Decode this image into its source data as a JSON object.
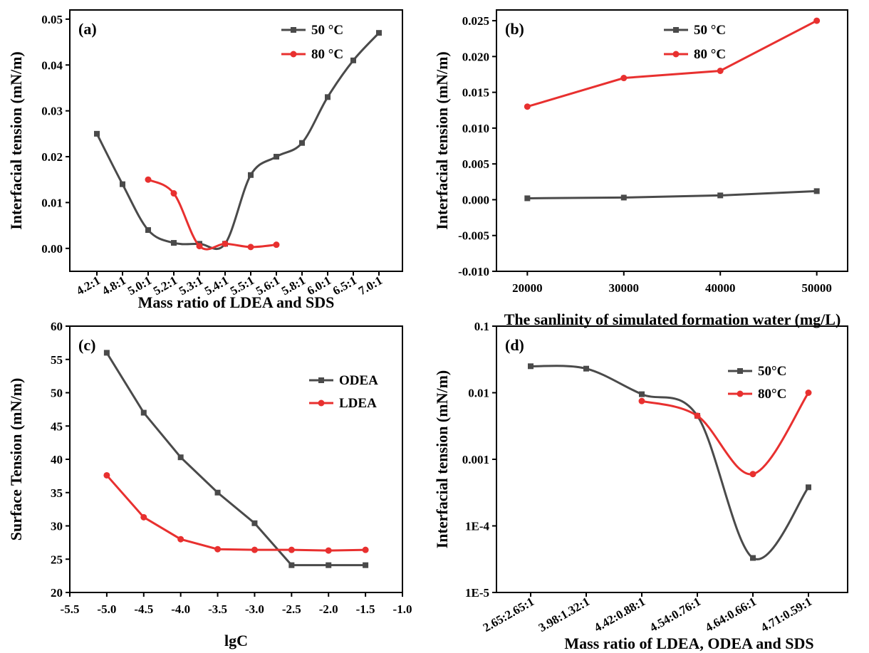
{
  "colors": {
    "series_gray": "#4a4a4a",
    "series_red": "#e8302f",
    "axis": "#000000"
  },
  "chart_data": [
    {
      "id": "a",
      "type": "line",
      "panel_label": "(a)",
      "xlabel": "Mass ratio of LDEA and SDS",
      "ylabel": "Interfacial tension (mN/m)",
      "categories": [
        "4.2:1",
        "4.8:1",
        "5.0:1",
        "5.2:1",
        "5.3:1",
        "5.4:1",
        "5.5:1",
        "5.6:1",
        "5.8:1",
        "6.0:1",
        "6.5:1",
        "7.0:1"
      ],
      "y_ticks": [
        "0.00",
        "0.01",
        "0.02",
        "0.03",
        "0.04",
        "0.05"
      ],
      "ylim": [
        -0.005,
        0.052
      ],
      "legend_position": "top-right",
      "series": [
        {
          "name": "50 °C",
          "color": "#4a4a4a",
          "marker": "square",
          "values": [
            0.025,
            0.014,
            0.004,
            0.0012,
            0.001,
            0.001,
            0.016,
            0.02,
            0.023,
            0.033,
            0.041,
            0.047
          ]
        },
        {
          "name": "80 °C",
          "color": "#e8302f",
          "marker": "circle",
          "values": [
            null,
            null,
            0.015,
            0.012,
            0.0005,
            0.001,
            0.0003,
            0.0008,
            null,
            null,
            null,
            null
          ]
        }
      ]
    },
    {
      "id": "b",
      "type": "line",
      "panel_label": "(b)",
      "xlabel": "The sanlinity of simulated formation water (mg/L)",
      "ylabel": "Interfacial tension (mN/m)",
      "x_ticks": [
        "20000",
        "30000",
        "40000",
        "50000"
      ],
      "x": [
        20000,
        30000,
        40000,
        50000
      ],
      "xlim": [
        16800,
        53200
      ],
      "y_ticks": [
        "-0.010",
        "-0.005",
        "0.000",
        "0.005",
        "0.010",
        "0.015",
        "0.020",
        "0.025"
      ],
      "ylim": [
        -0.01,
        0.0265
      ],
      "legend_position": "top-center",
      "series": [
        {
          "name": "50 °C",
          "color": "#4a4a4a",
          "marker": "square",
          "values": [
            0.0002,
            0.0003,
            0.0006,
            0.0012
          ]
        },
        {
          "name": "80 °C",
          "color": "#e8302f",
          "marker": "circle",
          "values": [
            0.013,
            0.017,
            0.018,
            0.025
          ]
        }
      ]
    },
    {
      "id": "c",
      "type": "line",
      "panel_label": "(c)",
      "xlabel": "lgC",
      "ylabel": "Surface Tension (mN/m)",
      "x_ticks": [
        "-5.5",
        "-5.0",
        "-4.5",
        "-4.0",
        "-3.5",
        "-3.0",
        "-2.5",
        "-2.0",
        "-1.5",
        "-1.0"
      ],
      "xlim": [
        -5.5,
        -1.0
      ],
      "y_ticks": [
        "20",
        "25",
        "30",
        "35",
        "40",
        "45",
        "50",
        "55",
        "60"
      ],
      "ylim": [
        20,
        60
      ],
      "legend_position": "top-right",
      "series": [
        {
          "name": "ODEA",
          "color": "#4a4a4a",
          "marker": "square",
          "x": [
            -5.0,
            -4.5,
            -4.0,
            -3.5,
            -3.0,
            -2.5,
            -2.0,
            -1.5
          ],
          "values": [
            56,
            47,
            40.3,
            35,
            30.4,
            24.1,
            24.1,
            24.1
          ]
        },
        {
          "name": "LDEA",
          "color": "#e8302f",
          "marker": "circle",
          "x": [
            -5.0,
            -4.5,
            -4.0,
            -3.5,
            -3.0,
            -2.5,
            -2.0,
            -1.5
          ],
          "values": [
            37.6,
            31.3,
            28,
            26.5,
            26.4,
            26.4,
            26.3,
            26.4
          ]
        }
      ]
    },
    {
      "id": "d",
      "type": "line",
      "panel_label": "(d)",
      "xlabel": "Mass ratio of LDEA, ODEA and SDS",
      "ylabel": "Interfacial tension (mN/m)",
      "categories": [
        "2.65:2.65:1",
        "3.98:1.32:1",
        "4.42:0.88:1",
        "4.54:0.76:1",
        "4.64:0.66:1",
        "4.71:0.59:1"
      ],
      "y_scale": "log",
      "y_ticks": [
        "1E-5",
        "1E-4",
        "0.001",
        "0.01",
        "0.1"
      ],
      "ylim": [
        1e-05,
        0.1
      ],
      "legend_position": "top-right",
      "series": [
        {
          "name": "50°C",
          "color": "#4a4a4a",
          "marker": "square",
          "values": [
            0.025,
            0.023,
            0.0095,
            0.0045,
            3.3e-05,
            0.00038
          ]
        },
        {
          "name": "80°C",
          "color": "#e8302f",
          "marker": "circle",
          "values": [
            null,
            null,
            0.0075,
            0.0045,
            0.0006,
            0.01
          ]
        }
      ]
    }
  ]
}
